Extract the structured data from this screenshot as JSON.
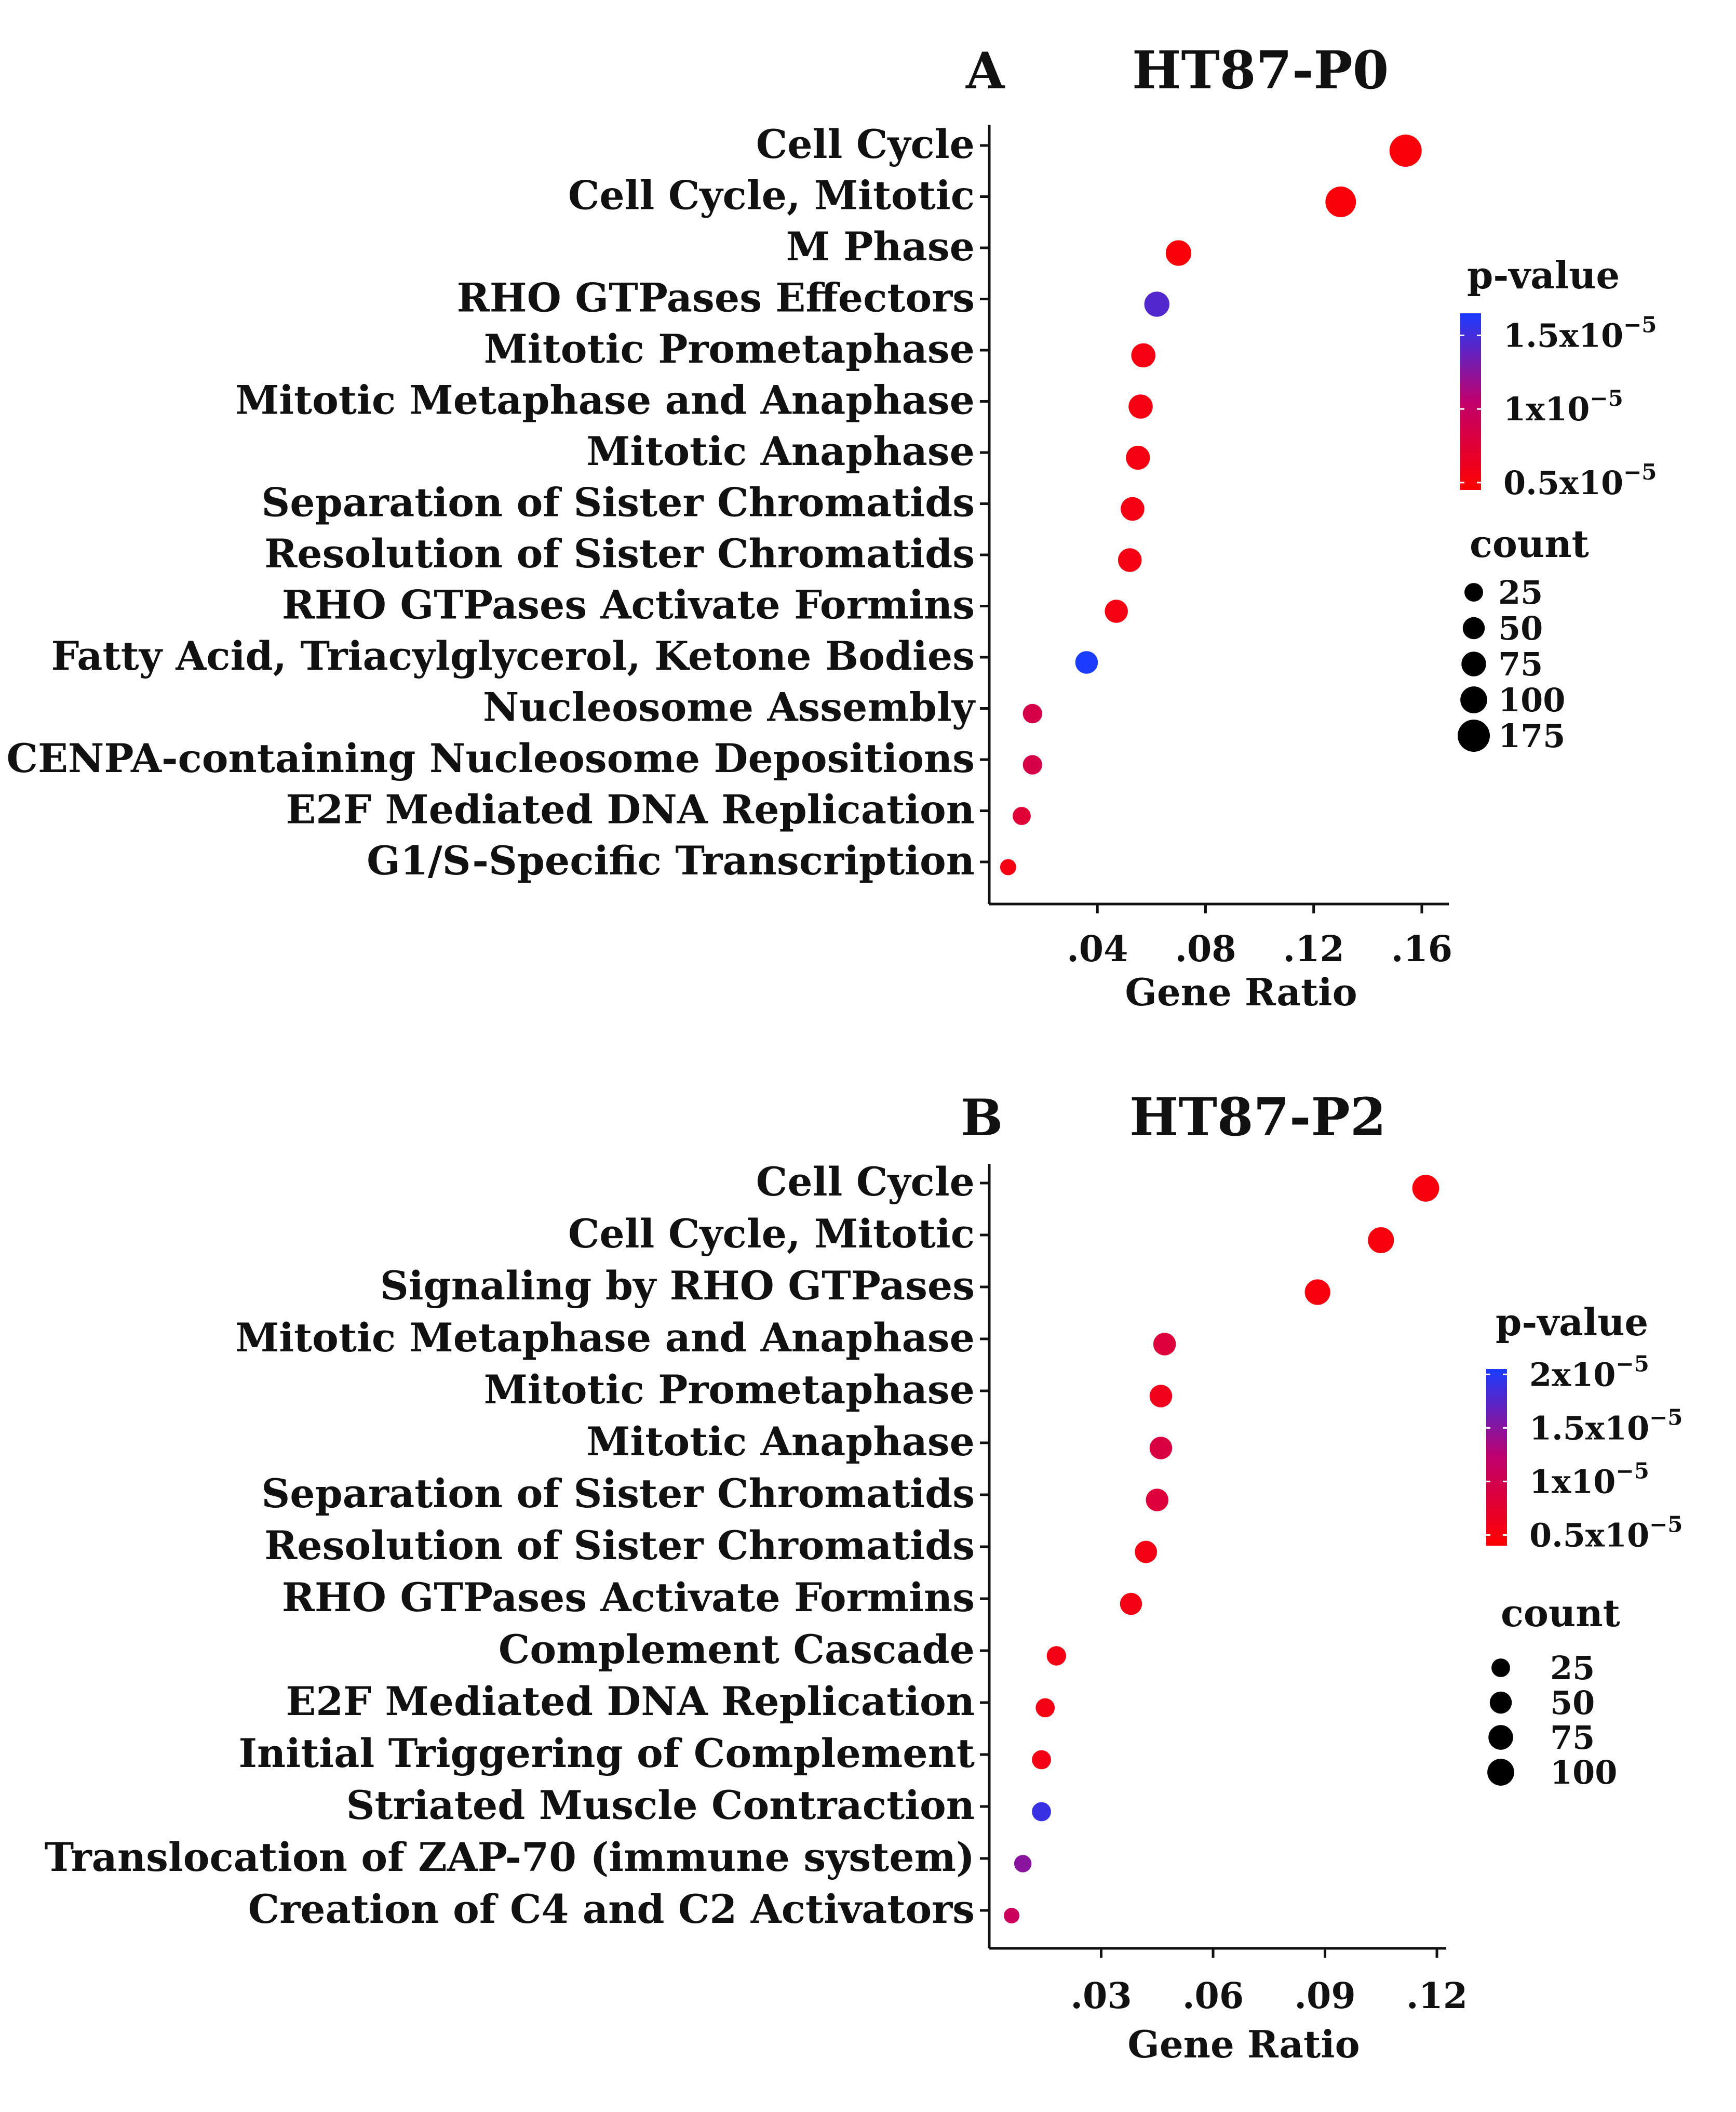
{
  "chart_data": [
    {
      "panel": "A",
      "type": "scatter",
      "title": "HT87-P0",
      "xlabel": "Gene Ratio",
      "ylabel": "",
      "xlim": [
        0.0,
        0.17
      ],
      "xticks": [
        0.04,
        0.08,
        0.12,
        0.16
      ],
      "xtick_labels": [
        ".04",
        ".08",
        ".12",
        ".16"
      ],
      "points": [
        {
          "label": "Cell Cycle",
          "x": 0.154,
          "count": 175,
          "pvalue": 5e-06
        },
        {
          "label": "Cell Cycle, Mitotic",
          "x": 0.13,
          "count": 150,
          "pvalue": 5e-06
        },
        {
          "label": "M Phase",
          "x": 0.07,
          "count": 85,
          "pvalue": 5e-06
        },
        {
          "label": "RHO GTPases Effectors",
          "x": 0.062,
          "count": 80,
          "pvalue": 1.45e-05
        },
        {
          "label": "Mitotic Prometaphase",
          "x": 0.057,
          "count": 70,
          "pvalue": 5.5e-06
        },
        {
          "label": "Mitotic Metaphase and Anaphase",
          "x": 0.056,
          "count": 70,
          "pvalue": 5.5e-06
        },
        {
          "label": "Mitotic Anaphase",
          "x": 0.055,
          "count": 68,
          "pvalue": 5.5e-06
        },
        {
          "label": "Separation of Sister Chromatids",
          "x": 0.053,
          "count": 65,
          "pvalue": 5.5e-06
        },
        {
          "label": "Resolution of Sister Chromatids",
          "x": 0.052,
          "count": 65,
          "pvalue": 5.5e-06
        },
        {
          "label": "RHO GTPases Activate Formins",
          "x": 0.047,
          "count": 60,
          "pvalue": 5.5e-06
        },
        {
          "label": "Fatty Acid, Triacylglycerol, Ketone Bodies",
          "x": 0.036,
          "count": 55,
          "pvalue": 1.65e-05
        },
        {
          "label": "Nucleosome Assembly",
          "x": 0.016,
          "count": 30,
          "pvalue": 8.5e-06
        },
        {
          "label": "CENPA-containing Nucleosome Depositions",
          "x": 0.016,
          "count": 30,
          "pvalue": 8.5e-06
        },
        {
          "label": "E2F Mediated DNA Replication",
          "x": 0.012,
          "count": 22,
          "pvalue": 7.5e-06
        },
        {
          "label": "G1/S-Specific Transcription",
          "x": 0.007,
          "count": 12,
          "pvalue": 5.5e-06
        }
      ],
      "color_legend": {
        "title": "p-value",
        "range": [
          4.5e-06,
          1.65e-05
        ],
        "low_color": "#ff0000",
        "mid_color": "#c0006c",
        "high_color": "#1a3cff",
        "labels": [
          {
            "base": "1.5x10",
            "exp": "−5",
            "value": 1.5e-05
          },
          {
            "base": "1x10",
            "exp": "−5",
            "value": 1e-05
          },
          {
            "base": "0.5x10",
            "exp": "−5",
            "value": 5e-06
          }
        ]
      },
      "size_legend": {
        "title": "count",
        "entries": [
          {
            "label": "25",
            "count": 25
          },
          {
            "label": "50",
            "count": 50
          },
          {
            "label": "75",
            "count": 75
          },
          {
            "label": "100",
            "count": 100
          },
          {
            "label": "175",
            "count": 175
          }
        ]
      }
    },
    {
      "panel": "B",
      "type": "scatter",
      "title": "HT87-P2",
      "xlabel": "Gene Ratio",
      "ylabel": "",
      "xlim": [
        0.0,
        0.1225
      ],
      "xticks": [
        0.03,
        0.06,
        0.09,
        0.12
      ],
      "xtick_labels": [
        ".03",
        ".06",
        ".09",
        ".12"
      ],
      "points": [
        {
          "label": "Cell Cycle",
          "x": 0.117,
          "count": 100,
          "pvalue": 5e-06
        },
        {
          "label": "Cell Cycle, Mitotic",
          "x": 0.105,
          "count": 90,
          "pvalue": 5e-06
        },
        {
          "label": "Signaling by RHO GTPases",
          "x": 0.088,
          "count": 85,
          "pvalue": 5e-06
        },
        {
          "label": "Mitotic Metaphase and Anaphase",
          "x": 0.047,
          "count": 55,
          "pvalue": 8.5e-06
        },
        {
          "label": "Mitotic Prometaphase",
          "x": 0.046,
          "count": 55,
          "pvalue": 6e-06
        },
        {
          "label": "Mitotic Anaphase",
          "x": 0.046,
          "count": 55,
          "pvalue": 9e-06
        },
        {
          "label": "Separation of Sister Chromatids",
          "x": 0.045,
          "count": 55,
          "pvalue": 8.5e-06
        },
        {
          "label": "Resolution of Sister Chromatids",
          "x": 0.042,
          "count": 52,
          "pvalue": 5.5e-06
        },
        {
          "label": "RHO GTPases Activate Formins",
          "x": 0.038,
          "count": 50,
          "pvalue": 5.5e-06
        },
        {
          "label": "Complement Cascade",
          "x": 0.018,
          "count": 30,
          "pvalue": 5.5e-06
        },
        {
          "label": "E2F Mediated DNA Replication",
          "x": 0.015,
          "count": 28,
          "pvalue": 5.5e-06
        },
        {
          "label": "Initial Triggering of Complement",
          "x": 0.014,
          "count": 28,
          "pvalue": 5.5e-06
        },
        {
          "label": "Striated Muscle Contraction",
          "x": 0.014,
          "count": 28,
          "pvalue": 1.9e-05
        },
        {
          "label": "Translocation of ZAP-70 (immune system)",
          "x": 0.009,
          "count": 18,
          "pvalue": 1.5e-05
        },
        {
          "label": "Creation of C4 and C2 Activators",
          "x": 0.006,
          "count": 10,
          "pvalue": 1.1e-05
        }
      ],
      "color_legend": {
        "title": "p-value",
        "range": [
          4e-06,
          2.05e-05
        ],
        "low_color": "#ff0000",
        "mid_color": "#c0006c",
        "high_color": "#1a3cff",
        "labels": [
          {
            "base": "2x10",
            "exp": "−5",
            "value": 2e-05
          },
          {
            "base": "1.5x10",
            "exp": "−5",
            "value": 1.5e-05
          },
          {
            "base": "1x10",
            "exp": "−5",
            "value": 1e-05
          },
          {
            "base": "0.5x10",
            "exp": "−5",
            "value": 5e-06
          }
        ]
      },
      "size_legend": {
        "title": "count",
        "entries": [
          {
            "label": "25",
            "count": 25
          },
          {
            "label": "50",
            "count": 50
          },
          {
            "label": "75",
            "count": 75
          },
          {
            "label": "100",
            "count": 100
          }
        ]
      }
    }
  ]
}
